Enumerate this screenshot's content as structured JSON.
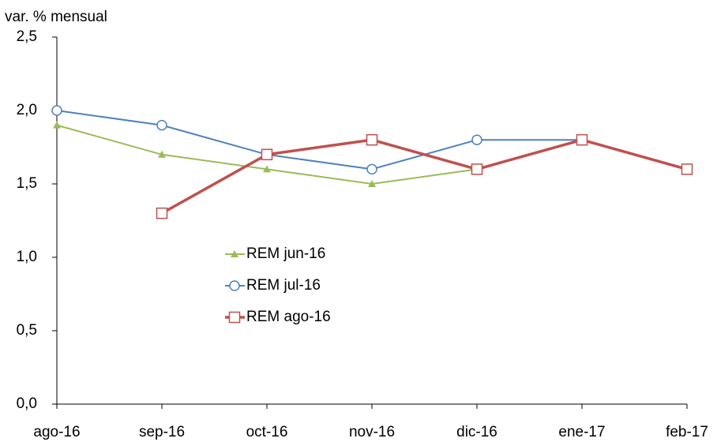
{
  "chart_data": {
    "type": "line",
    "ylabel": "var. % mensual",
    "categories": [
      "ago-16",
      "sep-16",
      "oct-16",
      "nov-16",
      "dic-16",
      "ene-17",
      "feb-17"
    ],
    "series": [
      {
        "name": "REM jun-16",
        "color": "#9bbb59",
        "marker": "triangle",
        "values": [
          1.9,
          1.7,
          1.6,
          1.5,
          1.6,
          null,
          null
        ]
      },
      {
        "name": "REM jul-16",
        "color": "#4f81bd",
        "marker": "circle",
        "values": [
          2.0,
          1.9,
          1.7,
          1.6,
          1.8,
          1.8,
          null
        ]
      },
      {
        "name": "REM ago-16",
        "color": "#c0504d",
        "marker": "square",
        "values": [
          null,
          1.3,
          1.7,
          1.8,
          1.6,
          1.8,
          1.6
        ]
      }
    ],
    "ylim": [
      0,
      2.5
    ],
    "yticks": [
      {
        "value": 0,
        "label": "0,0"
      },
      {
        "value": 0.5,
        "label": "0,5"
      },
      {
        "value": 1,
        "label": "1,0"
      },
      {
        "value": 1.5,
        "label": "1,5"
      },
      {
        "value": 2,
        "label": "2,0"
      },
      {
        "value": 2.5,
        "label": "2,5"
      }
    ]
  }
}
